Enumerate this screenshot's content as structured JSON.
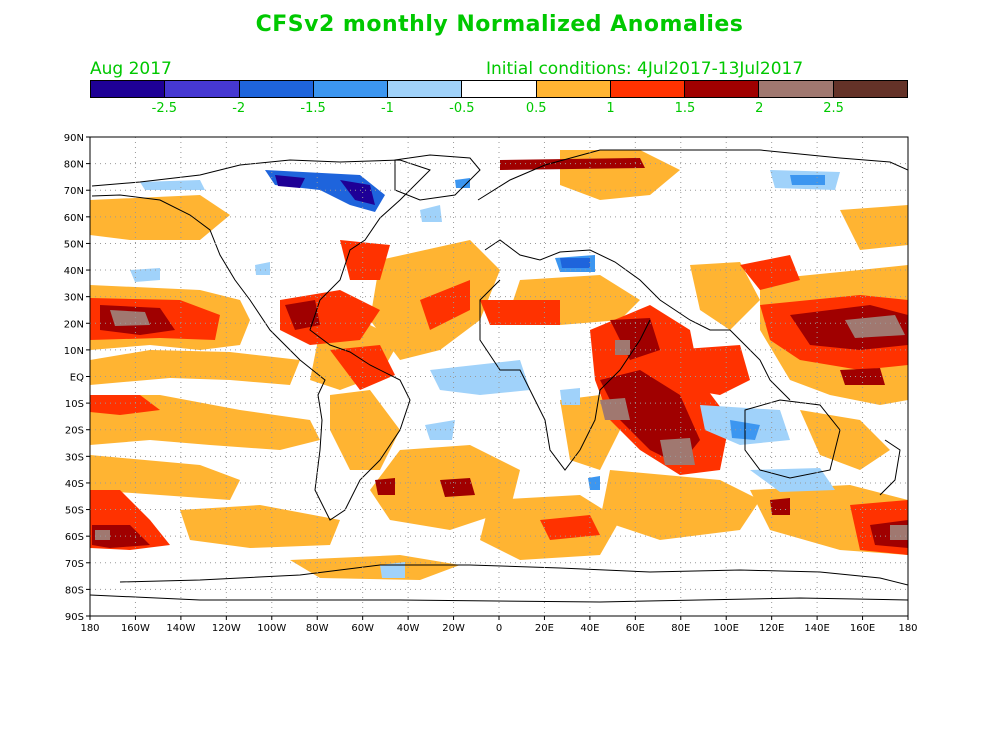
{
  "title": "CFSv2 monthly Normalized Anomalies",
  "month": "Aug 2017",
  "initial_conditions": "Initial conditions:  4Jul2017-13Jul2017",
  "colorbar": {
    "colors": [
      "#1e0096",
      "#4638d2",
      "#1e64dc",
      "#3c96f0",
      "#a0d2fa",
      "#ffffff",
      "#ffb432",
      "#ff3200",
      "#a00000",
      "#a07870",
      "#643228"
    ],
    "labels": [
      "-2.5",
      "-2",
      "-1.5",
      "-1",
      "-0.5",
      "0.5",
      "1",
      "1.5",
      "2",
      "2.5"
    ]
  },
  "lat_labels": [
    "90N",
    "80N",
    "70N",
    "60N",
    "50N",
    "40N",
    "30N",
    "20N",
    "10N",
    "EQ",
    "10S",
    "20S",
    "30S",
    "40S",
    "50S",
    "60S",
    "70S",
    "80S",
    "90S"
  ],
  "lon_labels": [
    "180",
    "160W",
    "140W",
    "120W",
    "100W",
    "80W",
    "60W",
    "40W",
    "20W",
    "0",
    "20E",
    "40E",
    "60E",
    "80E",
    "100E",
    "120E",
    "140E",
    "160E",
    "180"
  ]
}
